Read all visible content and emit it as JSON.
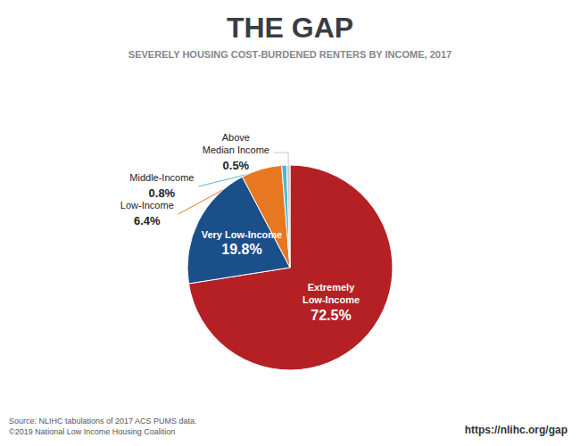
{
  "chart_data": {
    "type": "pie",
    "title": "THE GAP",
    "subtitle": "SEVERELY HOUSING COST-BURDENED RENTERS BY INCOME, 2017",
    "categories": [
      "Extremely\nLow-Income",
      "Very Low-Income",
      "Low-Income",
      "Middle-Income",
      "Above\nMedian Income"
    ],
    "values": [
      72.5,
      19.8,
      6.4,
      0.8,
      0.5
    ],
    "value_labels": [
      "72.5%",
      "19.8%",
      "6.4%",
      "0.8%",
      "0.5%"
    ],
    "colors": [
      "#B52025",
      "#1B4F8A",
      "#E87722",
      "#4DB8D4",
      "#C8C8C8"
    ],
    "data_labels": true,
    "annotations": [
      "Source: NLIHC tabulations of 2017 ACS PUMS data.\n©2019 National Low Income Housing Coalition",
      "https://nlihc.org/gap"
    ]
  }
}
